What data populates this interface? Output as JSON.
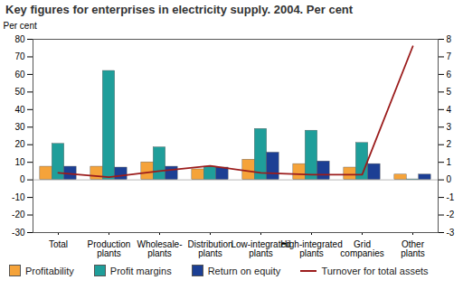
{
  "chart_data": {
    "type": "bar",
    "title": "Key figures for enterprises in electricity supply. 2004. Per cent",
    "ylabel": "Per cent",
    "categories": [
      "Total",
      "Production plants",
      "Wholesale- plants",
      "Distribution plants",
      "Low-integrated plants",
      "High-integrated plants",
      "Grid companies",
      "Other plants"
    ],
    "series": [
      {
        "name": "Profitability",
        "color": "#f5a33a",
        "values": [
          7.5,
          7.5,
          10,
          6,
          11.5,
          9,
          7,
          3
        ]
      },
      {
        "name": "Profit margins",
        "color": "#1f9e9a",
        "values": [
          20.5,
          62,
          18.5,
          7.5,
          29,
          28,
          21,
          0.3
        ]
      },
      {
        "name": "Return on equity",
        "color": "#1c3f94",
        "values": [
          7.5,
          7,
          7.5,
          7,
          15.5,
          10.5,
          9,
          3
        ]
      },
      {
        "name": "Turnover for total assets",
        "color": "#9b1c1c",
        "type": "line",
        "axis": "y2",
        "values": [
          0.4,
          0.15,
          0.5,
          0.8,
          0.4,
          0.3,
          0.3,
          7.6
        ]
      }
    ],
    "ylim": [
      -30,
      80
    ],
    "yticks": [
      -30,
      -20,
      -10,
      0,
      10,
      20,
      30,
      40,
      50,
      60,
      70,
      80
    ],
    "y2lim": [
      -3,
      8
    ],
    "y2ticks": [
      -3,
      -2,
      -1,
      0,
      1,
      2,
      3,
      4,
      5,
      6,
      7,
      8
    ],
    "legend": "bottom"
  }
}
